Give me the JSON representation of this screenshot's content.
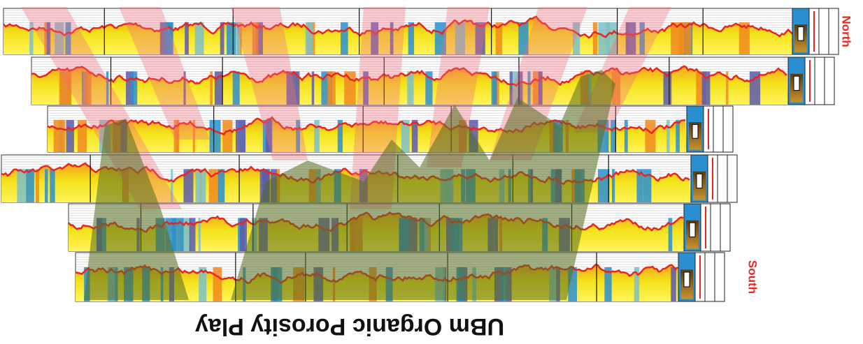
{
  "labels": {
    "north": "North",
    "south": "South"
  },
  "title": "UBm Organic Porosity Play"
}
